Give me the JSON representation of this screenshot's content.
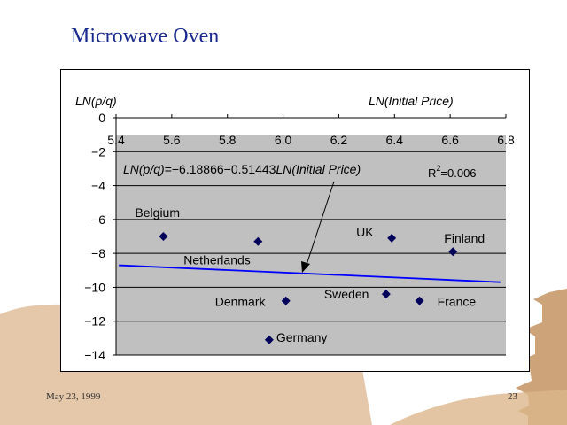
{
  "slide": {
    "title": "Microwave Oven",
    "date": "May 23, 1999",
    "page_number": "23"
  },
  "colors": {
    "title": "#1a2a8c",
    "plot_area": "#c0c0c0",
    "points": "#00005a",
    "trend_line": "#0000ff",
    "scenery": "#dcb68c"
  },
  "chart_data": {
    "type": "scatter",
    "ylabel": "LN(p/q)",
    "xlabel": "LN(Initial Price)",
    "xlim": [
      5.4,
      6.8
    ],
    "ylim": [
      -14,
      0
    ],
    "x_ticks": [
      "5.4",
      "5.6",
      "5.8",
      "6.0",
      "6.2",
      "6.4",
      "6.6",
      "6.8"
    ],
    "y_ticks": [
      "0",
      "−2",
      "−4",
      "−6",
      "−8",
      "−10",
      "−12",
      "−14"
    ],
    "grid": "horizontal",
    "points": [
      {
        "label": "Belgium",
        "x": 5.57,
        "y": -7.0
      },
      {
        "label": "Netherlands",
        "x": 5.91,
        "y": -7.3
      },
      {
        "label": "UK",
        "x": 6.39,
        "y": -7.1
      },
      {
        "label": "Finland",
        "x": 6.61,
        "y": -7.9
      },
      {
        "label": "Denmark",
        "x": 6.01,
        "y": -10.8
      },
      {
        "label": "Sweden",
        "x": 6.37,
        "y": -10.4
      },
      {
        "label": "France",
        "x": 6.49,
        "y": -10.8
      },
      {
        "label": "Germany",
        "x": 5.95,
        "y": -13.1
      }
    ],
    "trend_line": {
      "x": [
        5.41,
        6.78
      ],
      "y": [
        -8.7,
        -9.7
      ]
    },
    "annotation": {
      "equation_lead": "LN(p/q)",
      "equation_mid": "=−6.18866−0.51443",
      "equation_var": "LN(Initial Price)",
      "r2_label": "R",
      "r2_exp": "2",
      "r2_value": "=0.006"
    }
  }
}
